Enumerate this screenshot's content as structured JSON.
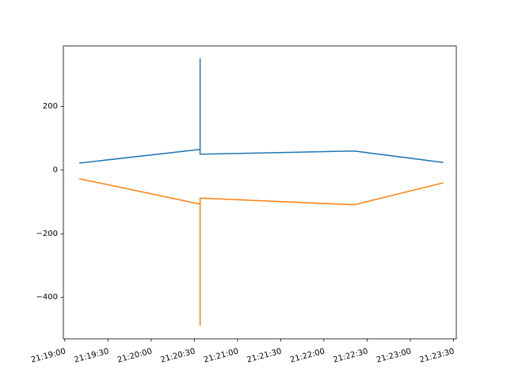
{
  "chart_data": {
    "type": "line",
    "title": "",
    "xlabel": "",
    "ylabel": "",
    "x_ticks": [
      "21:19:00",
      "21:19:30",
      "21:20:00",
      "21:20:30",
      "21:21:00",
      "21:21:30",
      "21:22:00",
      "21:22:30",
      "21:23:00",
      "21:23:30"
    ],
    "y_ticks": [
      "−400",
      "−200",
      "0",
      "200"
    ],
    "xlim": [
      "21:18:59",
      "21:23:32"
    ],
    "ylim": [
      -530,
      390
    ],
    "grid": false,
    "legend": "none",
    "series": [
      {
        "color": "#1f77b4",
        "points": [
          {
            "x": "21:19:10",
            "y": 22
          },
          {
            "x": "21:20:34",
            "y": 65
          },
          {
            "x": "21:20:34",
            "y": 350
          },
          {
            "x": "21:20:34",
            "y": 50
          },
          {
            "x": "21:22:21",
            "y": 60
          },
          {
            "x": "21:23:23",
            "y": 24
          }
        ]
      },
      {
        "color": "#ff7f0e",
        "points": [
          {
            "x": "21:19:10",
            "y": -27
          },
          {
            "x": "21:20:34",
            "y": -107
          },
          {
            "x": "21:20:34",
            "y": -488
          },
          {
            "x": "21:20:34",
            "y": -88
          },
          {
            "x": "21:22:21",
            "y": -109
          },
          {
            "x": "21:23:23",
            "y": -40
          }
        ]
      }
    ]
  }
}
